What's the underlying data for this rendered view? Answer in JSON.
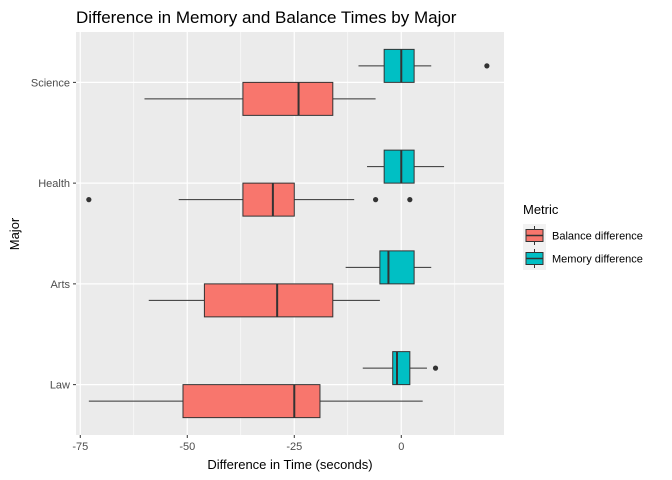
{
  "chart_data": {
    "type": "boxplot",
    "orientation": "horizontal",
    "title": "Difference in Memory and Balance Times by Major",
    "xlabel": "Difference in Time (seconds)",
    "ylabel": "Major",
    "xlim": [
      -76,
      24
    ],
    "x_ticks": [
      -75,
      -50,
      -25,
      0
    ],
    "categories": [
      "Law",
      "Arts",
      "Health",
      "Science"
    ],
    "grid": true,
    "legend": {
      "title": "Metric",
      "position": "right"
    },
    "colors": {
      "Balance difference": "#F8766D",
      "Memory difference": "#00BFC4",
      "panel": "#EBEBEB",
      "grid": "#FFFFFF"
    },
    "series": [
      {
        "name": "Balance difference",
        "boxes": [
          {
            "category": "Law",
            "whisker_low": -73,
            "q1": -51,
            "median": -25,
            "q3": -19,
            "whisker_high": 5,
            "outliers": []
          },
          {
            "category": "Arts",
            "whisker_low": -59,
            "q1": -46,
            "median": -29,
            "q3": -16,
            "whisker_high": -5,
            "outliers": []
          },
          {
            "category": "Health",
            "whisker_low": -52,
            "q1": -37,
            "median": -30,
            "q3": -25,
            "whisker_high": -11,
            "outliers": [
              -73,
              -6,
              2
            ]
          },
          {
            "category": "Science",
            "whisker_low": -60,
            "q1": -37,
            "median": -24,
            "q3": -16,
            "whisker_high": -6,
            "outliers": []
          }
        ]
      },
      {
        "name": "Memory difference",
        "boxes": [
          {
            "category": "Law",
            "whisker_low": -9,
            "q1": -2,
            "median": -1,
            "q3": 2,
            "whisker_high": 6,
            "outliers": [
              8
            ]
          },
          {
            "category": "Arts",
            "whisker_low": -13,
            "q1": -5,
            "median": -3,
            "q3": 3,
            "whisker_high": 7,
            "outliers": []
          },
          {
            "category": "Health",
            "whisker_low": -8,
            "q1": -4,
            "median": 0,
            "q3": 3,
            "whisker_high": 10,
            "outliers": []
          },
          {
            "category": "Science",
            "whisker_low": -10,
            "q1": -4,
            "median": 0,
            "q3": 3,
            "whisker_high": 7,
            "outliers": [
              20
            ]
          }
        ]
      }
    ]
  }
}
